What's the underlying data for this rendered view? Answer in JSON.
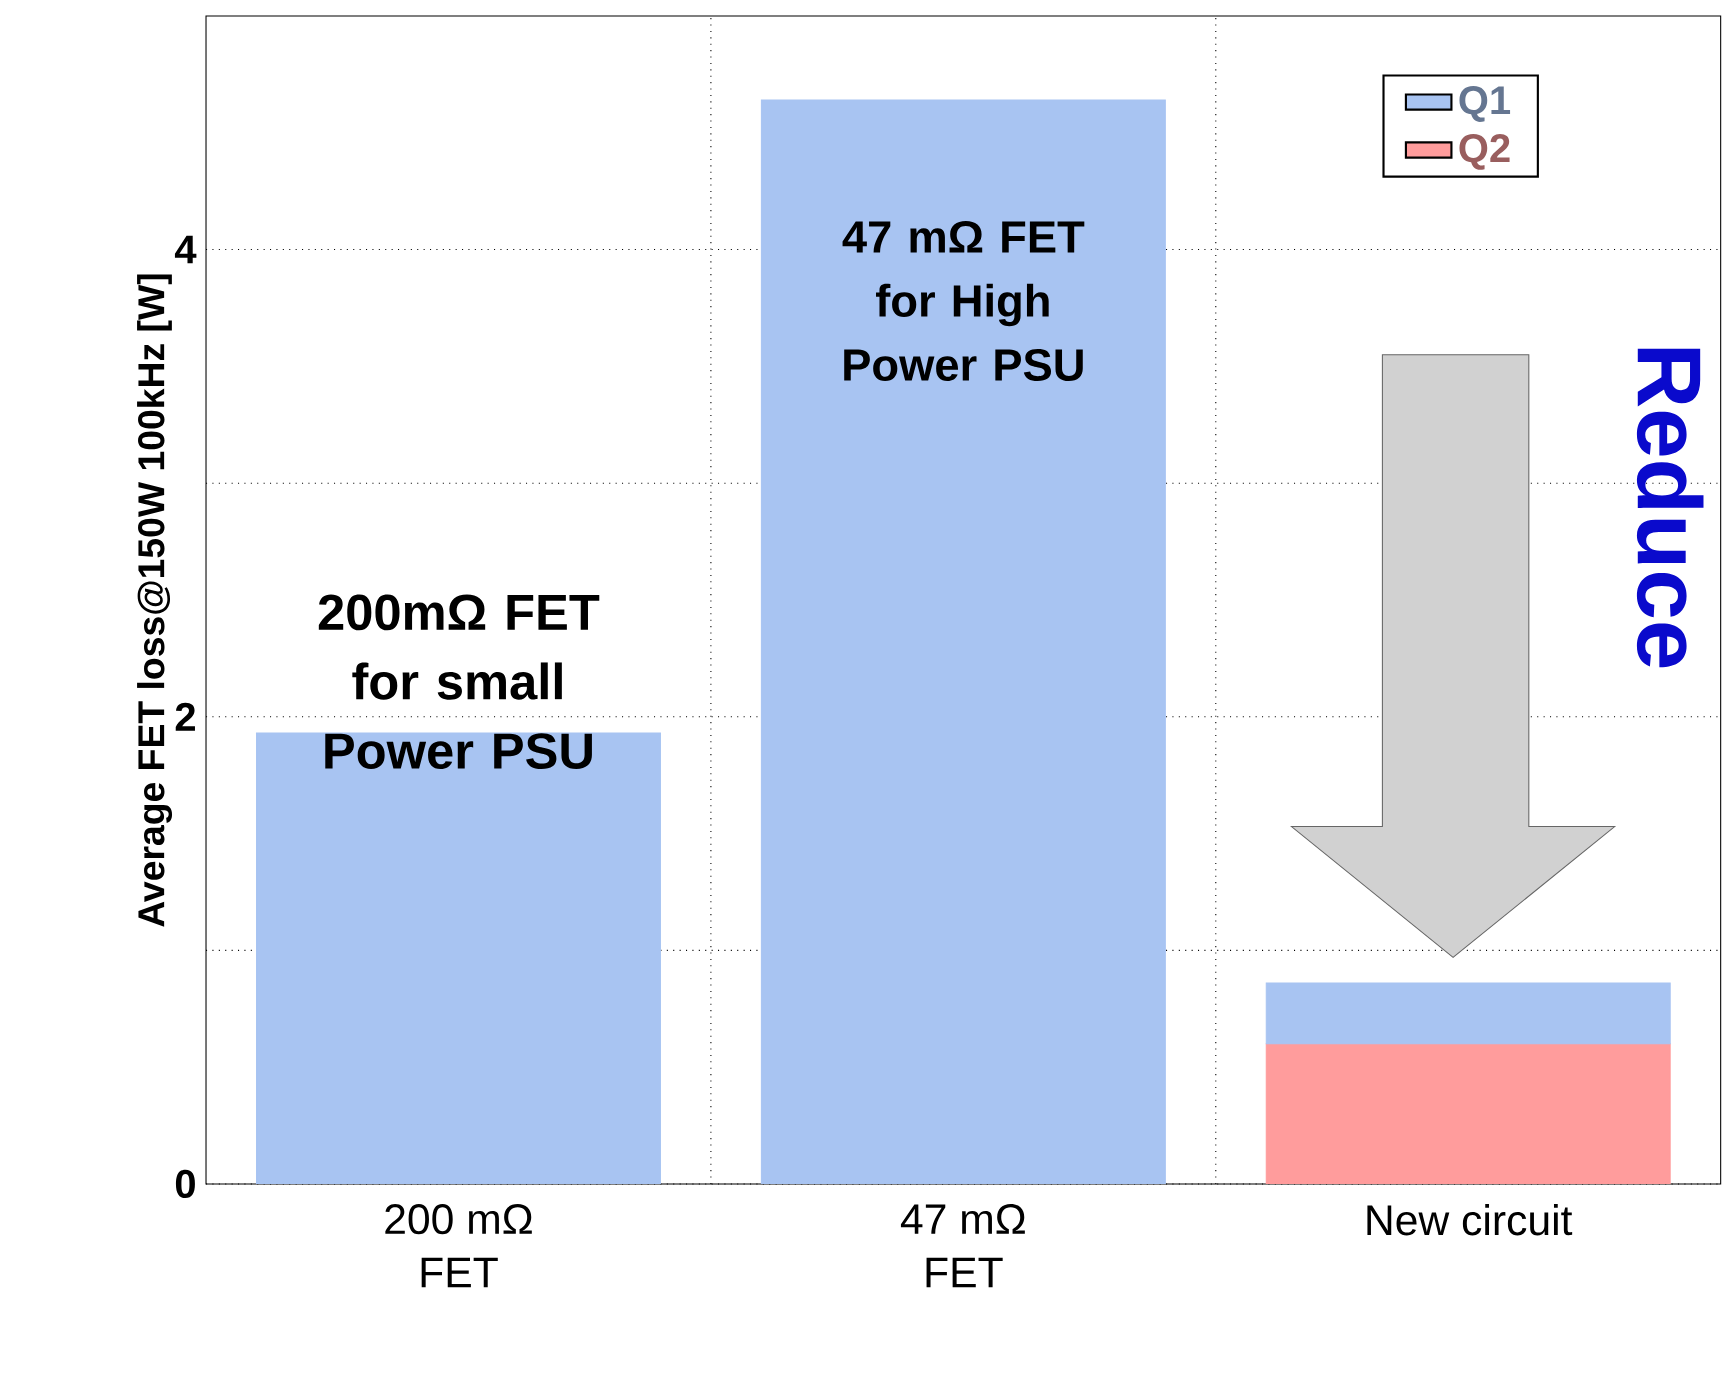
{
  "chart_data": {
    "type": "bar",
    "stacked": true,
    "ylabel": "Average FET loss@150W 100kHz [W]",
    "categories": [
      "200 mΩ FET",
      "47 mΩ FET",
      "New circuit"
    ],
    "series": [
      {
        "name": "Q2",
        "color": "#ff9c9c",
        "values": [
          null,
          null,
          0.6
        ]
      },
      {
        "name": "Q1",
        "color": "#a8c4f2",
        "values": [
          1.93,
          4.64,
          0.26
        ]
      }
    ],
    "ylim": [
      0,
      5
    ],
    "yticks": [
      0,
      {
        "value": 1,
        "label": null
      },
      2,
      {
        "value": 3,
        "label": null
      },
      4
    ],
    "grid": true,
    "legend": "top right",
    "annotations": [
      "200mΩ FET for small Power PSU",
      "47 mΩ FET for High Power PSU",
      "Reduce"
    ]
  }
}
